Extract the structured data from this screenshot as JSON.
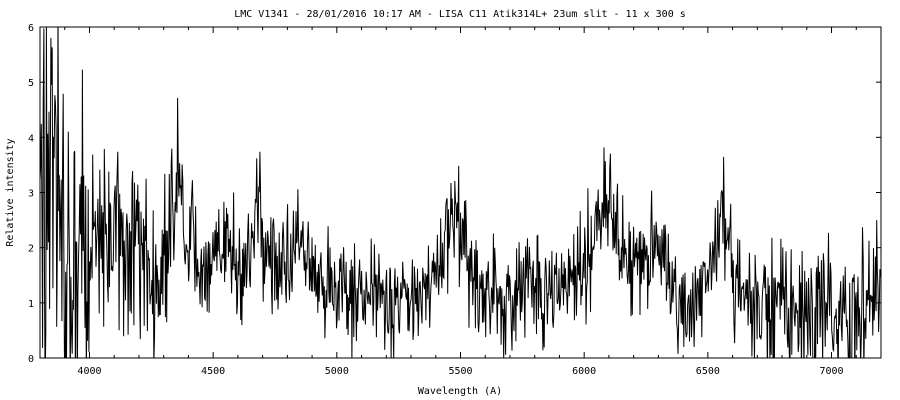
{
  "chart_data": {
    "type": "line",
    "title": "LMC V1341 - 28/01/2016 10:17 AM - LISA C11 Atik314L+ 23um slit - 11 x 300 s",
    "xlabel": "Wavelength (A)",
    "ylabel": "Relative intensity",
    "xlim": [
      3800,
      7200
    ],
    "ylim": [
      0,
      6
    ],
    "xticks": [
      4000,
      4500,
      5000,
      5500,
      6000,
      6500,
      7000
    ],
    "yticks": [
      0,
      1,
      2,
      3,
      4,
      5,
      6
    ],
    "x_tick_labels": [
      "4000",
      "4500",
      "5000",
      "5500",
      "6000",
      "6500",
      "7000"
    ],
    "y_tick_labels": [
      "0",
      "1",
      "2",
      "3",
      "4",
      "5",
      "6"
    ],
    "grid": false,
    "legend": "none",
    "line_color": "#000000",
    "series": [
      {
        "x": [
          3800,
          3850,
          3900,
          3950,
          4000,
          4050,
          4100,
          4150,
          4200,
          4250,
          4300,
          4340,
          4360,
          4400,
          4450,
          4500,
          4550,
          4600,
          4650,
          4686,
          4700,
          4750,
          4800,
          4861,
          4900,
          4950,
          5000,
          5050,
          5100,
          5150,
          5200,
          5250,
          5300,
          5350,
          5400,
          5450,
          5480,
          5500,
          5550,
          5600,
          5650,
          5700,
          5750,
          5800,
          5850,
          5900,
          5950,
          6000,
          6050,
          6100,
          6130,
          6150,
          6200,
          6250,
          6300,
          6350,
          6400,
          6450,
          6500,
          6550,
          6563,
          6600,
          6650,
          6700,
          6750,
          6800,
          6850,
          6900,
          6950,
          7000,
          7050,
          7100,
          7150,
          7200
        ],
        "y": [
          2.5,
          3.0,
          2.4,
          2.2,
          2.0,
          2.1,
          2.4,
          2.0,
          1.9,
          1.6,
          1.5,
          3.0,
          3.3,
          1.9,
          1.7,
          1.8,
          1.9,
          1.8,
          1.6,
          3.2,
          1.9,
          1.7,
          1.7,
          2.3,
          1.5,
          1.3,
          1.3,
          1.2,
          1.1,
          1.1,
          1.0,
          1.0,
          1.0,
          1.2,
          1.6,
          2.2,
          2.6,
          2.1,
          1.4,
          1.1,
          1.2,
          1.1,
          1.3,
          1.3,
          1.2,
          1.3,
          1.5,
          1.6,
          2.4,
          3.1,
          2.6,
          2.0,
          1.5,
          1.8,
          2.3,
          1.2,
          1.0,
          0.9,
          1.5,
          2.2,
          2.8,
          1.4,
          1.1,
          0.9,
          1.0,
          1.1,
          0.8,
          0.8,
          0.8,
          1.0,
          1.0,
          1.1,
          1.2,
          1.3
        ],
        "noise": [
          3.5,
          3.5,
          3.5,
          3.0,
          2.2,
          1.9,
          1.7,
          1.5,
          1.5,
          1.4,
          1.5,
          1.3,
          1.2,
          1.0,
          0.9,
          0.9,
          0.9,
          0.9,
          0.9,
          0.9,
          0.9,
          0.9,
          0.9,
          0.9,
          0.8,
          0.8,
          0.8,
          0.8,
          0.8,
          0.8,
          0.8,
          0.8,
          0.8,
          0.8,
          0.8,
          0.9,
          0.9,
          0.9,
          0.9,
          0.9,
          0.9,
          0.9,
          0.9,
          0.9,
          0.9,
          0.9,
          0.9,
          0.9,
          0.9,
          0.9,
          0.9,
          0.9,
          0.9,
          0.9,
          0.9,
          1.0,
          1.0,
          1.0,
          1.0,
          1.0,
          1.0,
          1.0,
          1.0,
          1.1,
          1.2,
          1.2,
          1.3,
          1.3,
          1.3,
          1.3,
          1.3,
          1.3,
          1.3,
          1.3
        ]
      }
    ]
  }
}
